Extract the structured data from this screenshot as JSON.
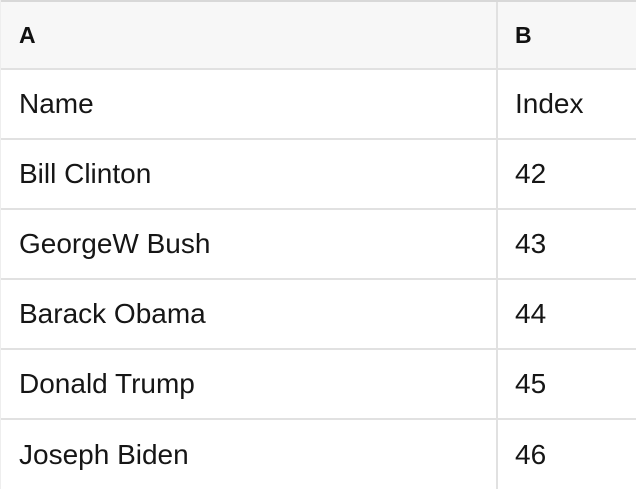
{
  "app": {
    "type": "spreadsheet-table"
  },
  "table": {
    "column_headers": [
      "A",
      "B"
    ],
    "field_labels": {
      "a": "Name",
      "b": "Index"
    },
    "rows": [
      {
        "a": "Name",
        "b": "Index"
      },
      {
        "a": "Bill Clinton",
        "b": "42"
      },
      {
        "a": "GeorgeW Bush",
        "b": "43"
      },
      {
        "a": "Barack Obama",
        "b": "44"
      },
      {
        "a": "Donald Trump",
        "b": "45"
      },
      {
        "a": "Joseph Biden",
        "b": "46"
      }
    ]
  },
  "colors": {
    "header_background": "#f7f7f7",
    "row_background": "#ffffff",
    "grid_border": "#e1e1e1",
    "top_border": "#d8d8d8",
    "left_border": "#eeeeee",
    "text": "#161616"
  }
}
